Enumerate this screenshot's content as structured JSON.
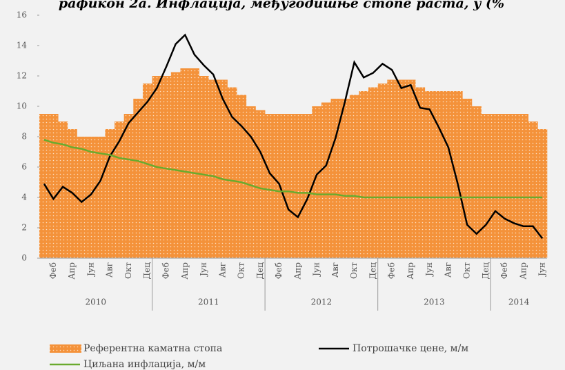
{
  "chart_data": {
    "type": "bar_line",
    "title": "рафикон 2а. Инфлација, међугодишње стопе раста, у (%",
    "categories": [
      null,
      "Феб",
      null,
      "Апр",
      null,
      "Јун",
      null,
      "Авг",
      null,
      "Окт",
      null,
      "Дец",
      null,
      "Феб",
      null,
      "Апр",
      null,
      "Јун",
      null,
      "Авг",
      null,
      "Окт",
      null,
      "Дец",
      null,
      "Феб",
      null,
      "Апр",
      null,
      "Јун",
      null,
      "Авг",
      null,
      "Окт",
      null,
      "Дец",
      null,
      "Феб",
      null,
      "Апр",
      null,
      "Јун",
      null,
      "Авг",
      null,
      "Окт",
      null,
      "Дец",
      null,
      "Феб",
      null,
      "Апр",
      null,
      "Јун"
    ],
    "years": [
      "2010",
      "2011",
      "2012",
      "2013",
      "2014"
    ],
    "ylim": [
      0,
      16
    ],
    "yticks": [
      0,
      2,
      4,
      6,
      8,
      10,
      12,
      14,
      16
    ],
    "series": [
      {
        "name": "Референтна каматна стопа",
        "kind": "bar",
        "color": "#f4923a",
        "values": [
          9.5,
          9.5,
          9.0,
          8.5,
          8.0,
          8.0,
          8.0,
          8.5,
          9.0,
          9.5,
          10.5,
          11.5,
          12.0,
          12.0,
          12.25,
          12.5,
          12.5,
          12.0,
          11.75,
          11.75,
          11.25,
          10.75,
          10.0,
          9.75,
          9.5,
          9.5,
          9.5,
          9.5,
          9.5,
          10.0,
          10.25,
          10.5,
          10.5,
          10.75,
          11.0,
          11.25,
          11.5,
          11.75,
          11.75,
          11.75,
          11.25,
          11.0,
          11.0,
          11.0,
          11.0,
          10.5,
          10.0,
          9.5,
          9.5,
          9.5,
          9.5,
          9.5,
          9.0,
          8.5
        ]
      },
      {
        "name": "Потрошачке цене, м/м",
        "kind": "line",
        "color": "#000000",
        "values": [
          4.9,
          3.9,
          4.7,
          4.3,
          3.7,
          4.2,
          5.1,
          6.7,
          7.7,
          8.9,
          9.6,
          10.3,
          11.2,
          12.6,
          14.1,
          14.7,
          13.4,
          12.7,
          12.1,
          10.5,
          9.3,
          8.7,
          8.0,
          7.0,
          5.6,
          4.9,
          3.2,
          2.7,
          3.9,
          5.5,
          6.1,
          7.9,
          10.3,
          12.9,
          11.9,
          12.2,
          12.8,
          12.4,
          11.2,
          11.4,
          9.9,
          9.8,
          8.6,
          7.3,
          4.9,
          2.2,
          1.6,
          2.2,
          3.1,
          2.6,
          2.3,
          2.1,
          2.1,
          1.3
        ]
      },
      {
        "name": "Циљана инфлација, м/м",
        "kind": "line",
        "color": "#6aaa2e",
        "values": [
          7.8,
          7.6,
          7.5,
          7.3,
          7.2,
          7.0,
          6.9,
          6.8,
          6.6,
          6.5,
          6.4,
          6.2,
          6.0,
          5.9,
          5.8,
          5.7,
          5.6,
          5.5,
          5.4,
          5.2,
          5.1,
          5.0,
          4.8,
          4.6,
          4.5,
          4.4,
          4.4,
          4.3,
          4.3,
          4.2,
          4.2,
          4.2,
          4.1,
          4.1,
          4.0,
          4.0,
          4.0,
          4.0,
          4.0,
          4.0,
          4.0,
          4.0,
          4.0,
          4.0,
          4.0,
          4.0,
          4.0,
          4.0,
          4.0,
          4.0,
          4.0,
          4.0,
          4.0,
          4.0
        ]
      }
    ]
  }
}
